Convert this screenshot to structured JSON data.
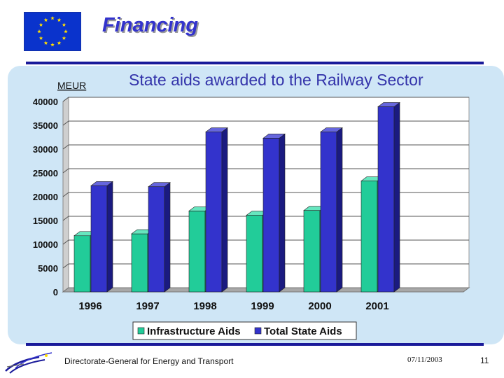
{
  "slide": {
    "title": "Financing",
    "footer_text": "Directorate-General for Energy and Transport",
    "footer_date": "07/11/2003",
    "page_number": "11"
  },
  "colors": {
    "accent": "#1a1a9a",
    "flag_blue": "#0a33cc",
    "flag_star": "#ffdd00",
    "panel": "#cfe6f6",
    "infrastructure": "#22cc99",
    "total": "#3333cc"
  },
  "chart_data": {
    "type": "bar",
    "title": "State aids awarded to the Railway Sector",
    "ylabel": "MEUR",
    "xlabel": "",
    "categories": [
      "1996",
      "1997",
      "1998",
      "1999",
      "2000",
      "2001"
    ],
    "series": [
      {
        "name": "Infrastructure Aids",
        "values": [
          11800,
          12200,
          17000,
          16100,
          17100,
          23300
        ]
      },
      {
        "name": "Total State Aids",
        "values": [
          22300,
          22100,
          33600,
          32300,
          33600,
          38900
        ]
      }
    ],
    "ylim": [
      0,
      40000
    ],
    "yticks": [
      "0",
      "5000",
      "10000",
      "15000",
      "20000",
      "25000",
      "30000",
      "35000",
      "40000"
    ],
    "grid": true,
    "legend_position": "bottom"
  }
}
